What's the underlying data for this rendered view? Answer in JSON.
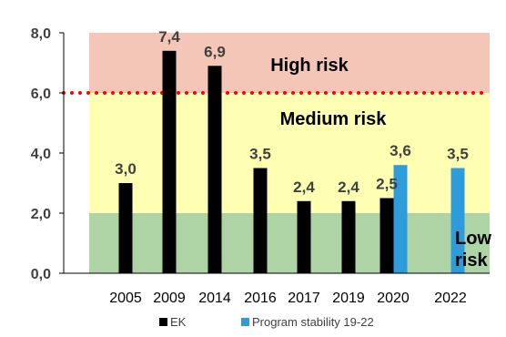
{
  "chart_data": {
    "type": "bar",
    "categories": [
      "2005",
      "2009",
      "2014",
      "2016",
      "2017",
      "2019",
      "2020",
      "2022"
    ],
    "series": [
      {
        "name": "EK",
        "color": "#000000",
        "values": [
          3.0,
          7.4,
          6.9,
          3.5,
          2.4,
          2.4,
          2.5,
          null
        ]
      },
      {
        "name": "Program stability 19-22",
        "color": "#2e9bdb",
        "values": [
          null,
          null,
          null,
          null,
          null,
          null,
          3.6,
          3.5
        ]
      }
    ],
    "data_labels": [
      "3,0",
      "7,4",
      "6,9",
      "3,5",
      "2,4",
      "2,4",
      "2,5",
      "3,6",
      "3,5"
    ],
    "ylim": [
      0,
      8
    ],
    "yticks": [
      0,
      2,
      4,
      6,
      8
    ],
    "ytick_labels": [
      "0,0",
      "2,0",
      "4,0",
      "6,0",
      "8,0"
    ],
    "threshold": {
      "value": 6.0,
      "color": "#ff0000",
      "style": "dotted"
    },
    "zones": [
      {
        "label": "High risk",
        "from": 6,
        "to": 8,
        "color": "#f4c6b8"
      },
      {
        "label": "Medium risk",
        "from": 2,
        "to": 6,
        "color": "#ffffb3"
      },
      {
        "label": "Low risk",
        "from": 0,
        "to": 2,
        "color": "#aed4a5"
      }
    ],
    "legend_position": "bottom",
    "grid": false
  }
}
